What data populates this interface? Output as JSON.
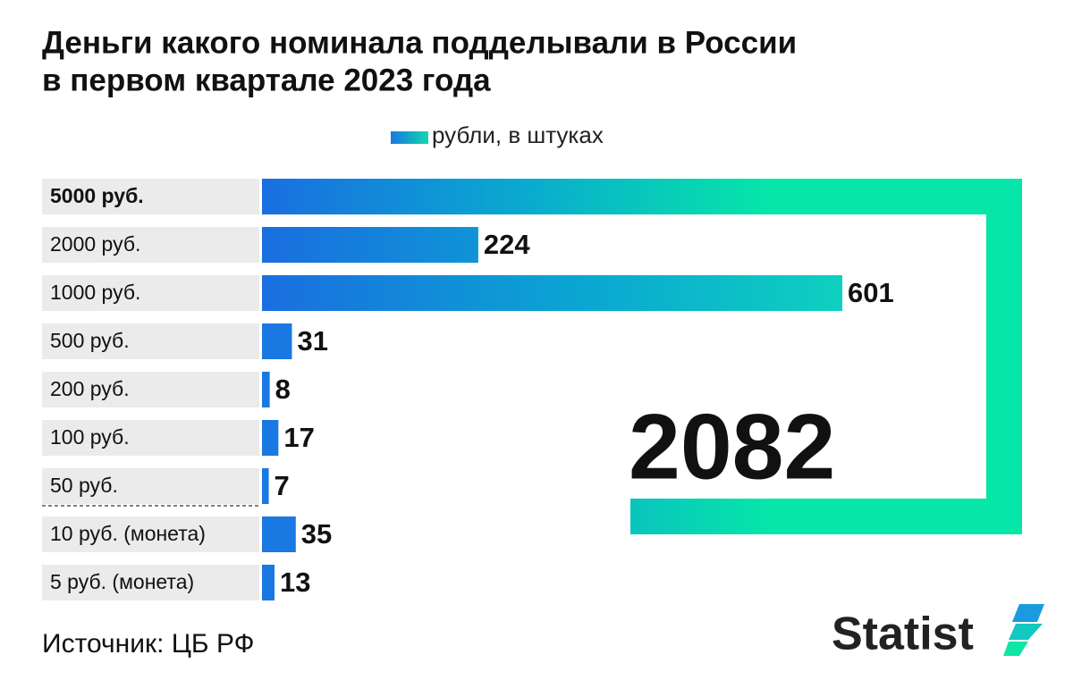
{
  "chart_data": {
    "type": "bar",
    "orientation": "horizontal",
    "title": [
      "Деньги какого номинала подделывали в России",
      "в первом квартале 2023 года"
    ],
    "legend": "рубли, в штуках",
    "categories": [
      "5000 руб.",
      "2000 руб.",
      "1000 руб.",
      "500 руб.",
      "200 руб.",
      "100 руб.",
      "50 руб.",
      "10 руб. (монета)",
      "5 руб. (монета)"
    ],
    "values": [
      2082,
      224,
      601,
      31,
      8,
      17,
      7,
      35,
      13
    ],
    "highlight": 0,
    "color": "#1a78e2",
    "source": "Источник: ЦБ РФ",
    "logo": "Statist"
  }
}
